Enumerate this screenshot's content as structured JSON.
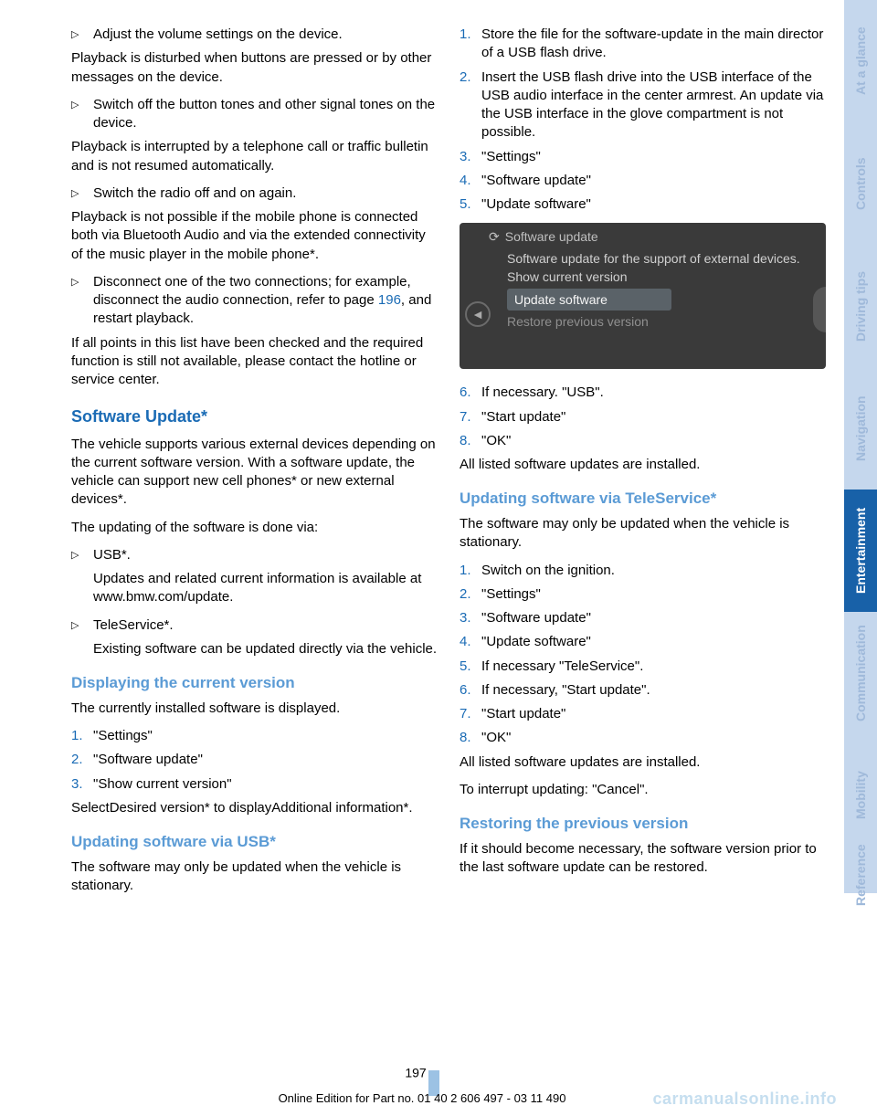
{
  "leftCol": {
    "b1": "Adjust the volume settings on the device.",
    "p1": "Playback is disturbed when buttons are pressed or by other messages on the device.",
    "b2": "Switch off the button tones and other signal tones on the device.",
    "p2": "Playback is interrupted by a telephone call or traffic bulletin and is not resumed automatically.",
    "b3": "Switch the radio off and on again.",
    "p3": "Playback is not possible if the mobile phone is connected both via Bluetooth Audio and via the extended connectivity of the music player in the mobile phone*.",
    "b4_pre": "Disconnect one of the two connections; for example, disconnect the audio connection, refer to page ",
    "b4_link": "196",
    "b4_post": ", and restart playback.",
    "p4": "If all points in this list have been checked and the required function is still not available, please contact the hotline or service center.",
    "h1": "Software Update*",
    "p5": "The vehicle supports various external devices depending on the current software version. With a software update, the vehicle can support new cell phones* or new external devices*.",
    "p6": "The updating of the software is done via:",
    "b5": "USB*.",
    "b5_sub": "Updates and related current information is available at www.bmw.com/update.",
    "b6": "TeleService*.",
    "b6_sub": "Existing software can be updated directly via the vehicle.",
    "h2a": "Displaying the current version",
    "p7": "The currently installed software is displayed.",
    "ol1": [
      "\"Settings\"",
      "\"Software update\"",
      "\"Show current version\""
    ],
    "p8": "SelectDesired version* to displayAdditional information*.",
    "h2b": "Updating software via USB*",
    "p9": "The software may only be updated when the vehicle is stationary."
  },
  "rightCol": {
    "ol2": [
      "Store the file for the software-update in the main director of a USB flash drive.",
      "Insert the USB flash drive into the USB interface of the USB audio interface in the center armrest. An update via the USB interface in the glove compartment is not possible.",
      "\"Settings\"",
      "\"Software update\"",
      "\"Update software\""
    ],
    "screenshot": {
      "title": "Software update",
      "line1": "Software update for the support of external devices.",
      "line2": "Show current version",
      "selected": "Update software",
      "line3": "Restore previous version"
    },
    "ol2b": [
      "If necessary. \"USB\".",
      "\"Start update\"",
      "\"OK\""
    ],
    "p10": "All listed software updates are installed.",
    "h2c": "Updating software via TeleService*",
    "p11": "The software may only be updated when the vehicle is stationary.",
    "ol3": [
      "Switch on the ignition.",
      "\"Settings\"",
      "\"Software update\"",
      "\"Update software\"",
      "If necessary \"TeleService\".",
      "If necessary, \"Start update\".",
      "\"Start update\"",
      "\"OK\""
    ],
    "p12": "All listed software updates are installed.",
    "p13": "To interrupt updating: \"Cancel\".",
    "h2d": "Restoring the previous version",
    "p14": "If it should become necessary, the software version prior to the last software update can be restored."
  },
  "tabs": [
    "At a glance",
    "Controls",
    "Driving tips",
    "Navigation",
    "Entertainment",
    "Communication",
    "Mobility",
    "Reference"
  ],
  "tab_selected_index": 4,
  "pageNumber": "197",
  "footer": "Online Edition for Part no. 01 40 2 606 497 - 03 11 490",
  "watermark": "carmanualsonline.info",
  "bullet_glyph": "▷"
}
